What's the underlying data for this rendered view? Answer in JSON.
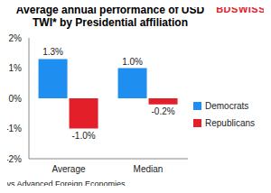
{
  "chart_data": {
    "type": "bar",
    "title": "Average annual performance of USD TWI* by Presidential affiliation",
    "annotations": [
      "BDSWISS",
      "*vs Advanced Foreign Economies"
    ],
    "categories": [
      "Average",
      "Median"
    ],
    "series": [
      {
        "name": "Democrats",
        "color": "#1f8ef1",
        "values": [
          1.3,
          1.0
        ],
        "value_labels": [
          "1.3%",
          "1.0%"
        ]
      },
      {
        "name": "Republicans",
        "color": "#e3202a",
        "values": [
          -1.0,
          -0.2
        ],
        "value_labels": [
          "-1.0%",
          "-0.2%"
        ]
      }
    ],
    "ylim": [
      -2,
      2
    ],
    "yticks": [
      {
        "value": -2,
        "label": "-2%"
      },
      {
        "value": -1,
        "label": "-1%"
      },
      {
        "value": 0,
        "label": "0%"
      },
      {
        "value": 1,
        "label": "1%"
      },
      {
        "value": 2,
        "label": "2%"
      }
    ],
    "grid": false,
    "legend": "right",
    "data_labels": true
  }
}
